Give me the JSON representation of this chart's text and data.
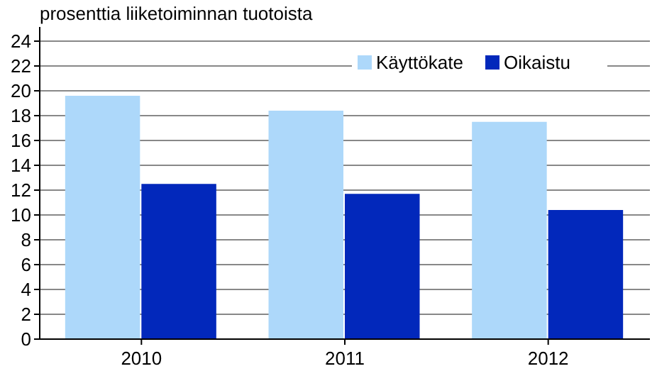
{
  "chart_data": {
    "type": "bar",
    "ylabel": "prosenttia liiketoiminnan tuotoista",
    "categories": [
      "2010",
      "2011",
      "2012"
    ],
    "series": [
      {
        "name": "Käyttökate",
        "color": "#add8fa",
        "values": [
          19.6,
          18.4,
          17.5
        ]
      },
      {
        "name": "Oikaistu",
        "color": "#0228bb",
        "values": [
          12.5,
          11.7,
          10.4
        ]
      }
    ],
    "ylim": [
      0,
      24
    ],
    "yticks": [
      0,
      2,
      4,
      6,
      8,
      10,
      12,
      14,
      16,
      18,
      20,
      22,
      24
    ],
    "grid": "y",
    "legend": "top right"
  }
}
